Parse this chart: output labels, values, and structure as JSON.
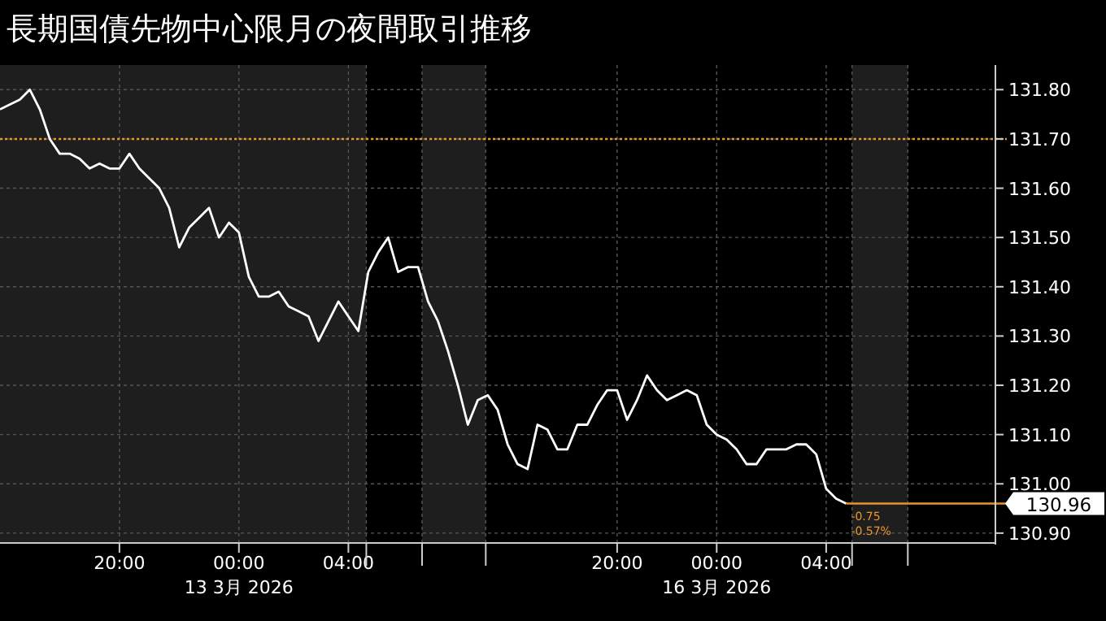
{
  "chart_data": {
    "type": "line",
    "title": "長期国債先物中心限月の夜間取引推移",
    "categories": [
      null,
      null,
      null,
      null,
      null,
      null,
      null,
      null,
      null,
      null,
      null,
      null,
      "20:00",
      null,
      null,
      null,
      null,
      null,
      null,
      null,
      null,
      null,
      null,
      null,
      "00:00\n13 3月 2026",
      null,
      null,
      null,
      null,
      null,
      null,
      null,
      null,
      null,
      null,
      "04:00",
      null,
      null,
      null,
      null,
      null,
      null,
      null,
      null,
      null,
      null,
      null,
      null,
      null,
      null,
      null,
      null,
      null,
      null,
      null,
      null,
      null,
      null,
      null,
      null,
      null,
      null,
      "20:00",
      null,
      null,
      null,
      null,
      null,
      null,
      null,
      null,
      null,
      "00:00\n16 3月 2026",
      null,
      null,
      null,
      null,
      null,
      null,
      null,
      null,
      null,
      null,
      "04:00",
      null,
      null,
      null,
      null,
      null,
      null,
      null,
      null,
      null,
      null,
      null,
      null,
      null,
      null,
      null,
      null
    ],
    "values": [
      131.76,
      131.77,
      131.78,
      131.8,
      131.76,
      131.7,
      131.67,
      131.67,
      131.66,
      131.64,
      131.65,
      131.64,
      131.64,
      131.67,
      131.64,
      131.62,
      131.6,
      131.56,
      131.48,
      131.52,
      131.54,
      131.56,
      131.5,
      131.53,
      131.51,
      131.42,
      131.38,
      131.38,
      131.39,
      131.36,
      131.35,
      131.34,
      131.29,
      131.33,
      131.37,
      131.34,
      131.31,
      131.43,
      131.47,
      131.5,
      131.43,
      131.44,
      131.44,
      131.37,
      131.33,
      131.27,
      131.2,
      131.12,
      131.17,
      131.18,
      131.15,
      131.08,
      131.04,
      131.03,
      131.12,
      131.11,
      131.07,
      131.07,
      131.12,
      131.12,
      131.16,
      131.19,
      131.19,
      131.13,
      131.17,
      131.22,
      131.19,
      131.17,
      131.18,
      131.19,
      131.18,
      131.12,
      131.1,
      131.09,
      131.07,
      131.04,
      131.04,
      131.07,
      131.07,
      131.07,
      131.08,
      131.08,
      131.06,
      130.99,
      130.97,
      130.96,
      null,
      null,
      null,
      null,
      null,
      null,
      null,
      null,
      null,
      null,
      null,
      null,
      null,
      null
    ],
    "color": "#ffffff",
    "ylim": [
      130.88,
      131.85
    ],
    "yticks": [
      {
        "value": 130.9,
        "label": "130.90"
      },
      {
        "value": 131,
        "label": "131.00"
      },
      {
        "value": 131.1,
        "label": "131.10"
      },
      {
        "value": 131.2,
        "label": "131.20"
      },
      {
        "value": 131.3,
        "label": "131.30"
      },
      {
        "value": 131.4,
        "label": "131.40"
      },
      {
        "value": 131.5,
        "label": "131.50"
      },
      {
        "value": 131.6,
        "label": "131.60"
      },
      {
        "value": 131.7,
        "label": "131.70"
      },
      {
        "value": 131.8,
        "label": "131.80"
      }
    ],
    "grid": true,
    "ref_lines": [
      {
        "axis": "y",
        "value": 131.7,
        "color": "#e8962a",
        "line_style": "dotted"
      },
      {
        "axis": "y",
        "value": 130.96,
        "label": "130.96",
        "color": "#e8962a",
        "line_style": "solid"
      }
    ],
    "annotations": [
      "-0.75",
      "-0.57%"
    ]
  }
}
